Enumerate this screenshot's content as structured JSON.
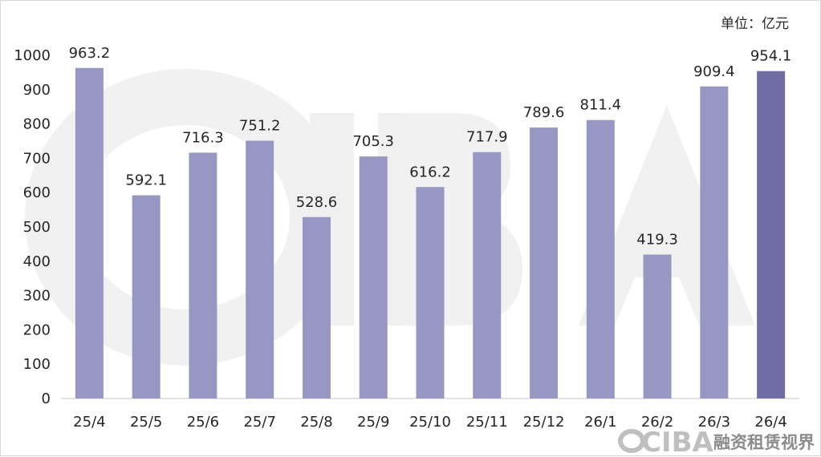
{
  "chart_data": {
    "type": "bar",
    "unit_label": "单位：亿元",
    "categories": [
      "25/4",
      "25/5",
      "25/6",
      "25/7",
      "25/8",
      "25/9",
      "25/10",
      "25/11",
      "25/12",
      "26/1",
      "26/2",
      "26/3",
      "26/4"
    ],
    "series": [
      {
        "values": [
          963.2,
          592.1,
          716.3,
          751.2,
          528.6,
          705.3,
          616.2,
          717.9,
          789.6,
          811.4,
          419.3,
          909.4,
          954.1
        ]
      }
    ],
    "data_labels": [
      "963.2",
      "592.1",
      "716.3",
      "751.2",
      "528.6",
      "705.3",
      "616.2",
      "717.9",
      "789.6",
      "811.4",
      "419.3",
      "909.4",
      "954.1"
    ],
    "ylim": [
      0,
      1000
    ],
    "yticks": [
      0,
      100,
      200,
      300,
      400,
      500,
      600,
      700,
      800,
      900,
      1000
    ],
    "grid": false,
    "legend": "none",
    "colors": {
      "bar": "#9697c2",
      "bar_highlight": "#6f6ea4",
      "axis": "#d9d9d9"
    },
    "highlight_index": 12
  },
  "watermark": {
    "logo_text": "CIBA",
    "caption": "融资租赁视界"
  }
}
